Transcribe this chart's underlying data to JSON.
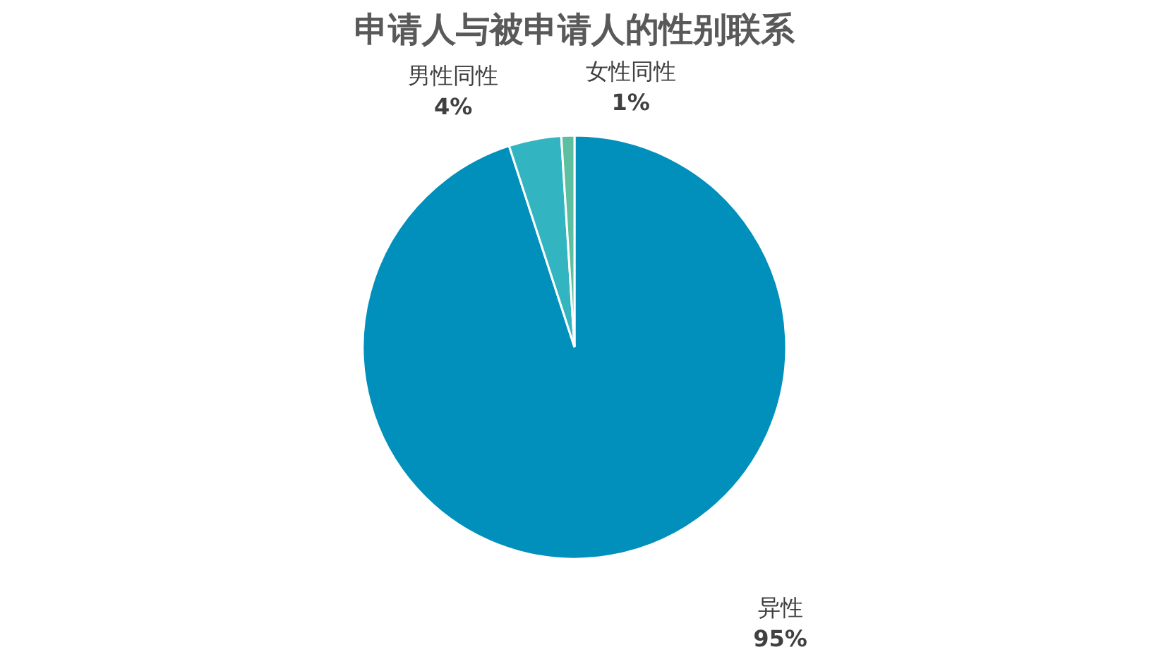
{
  "chart_data": {
    "type": "pie",
    "title": "申请人与被申请人的性别联系",
    "categories": [
      "异性",
      "男性同性",
      "女性同性"
    ],
    "values": [
      95,
      4,
      1
    ],
    "value_labels": [
      "95%",
      "4%",
      "1%"
    ],
    "colors": [
      "#0090bb",
      "#33b5c1",
      "#5cbf9f"
    ],
    "legend": false
  }
}
